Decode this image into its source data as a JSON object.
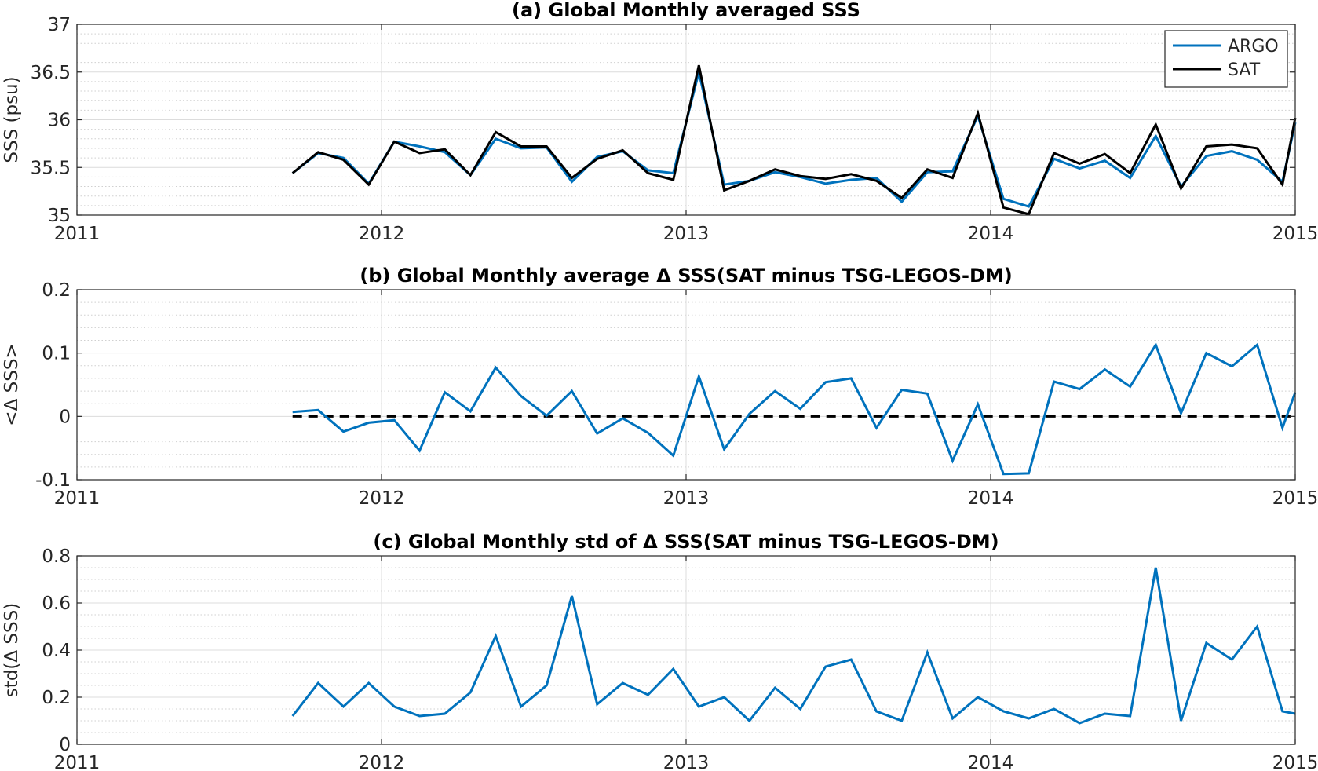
{
  "chart_data": [
    {
      "type": "line",
      "title": "(a) Global Monthly averaged SSS",
      "xlabel": "",
      "ylabel": "SSS (psu)",
      "xlim": [
        2011,
        2015
      ],
      "ylim": [
        35,
        37
      ],
      "xticks": [
        2011,
        2012,
        2013,
        2014,
        2015
      ],
      "xtick_labels": [
        "2011",
        "2012",
        "2013",
        "2014",
        "2015"
      ],
      "yticks": [
        35,
        35.5,
        36,
        36.5,
        37
      ],
      "ytick_labels": [
        "35",
        "35.5",
        "36",
        "36.5",
        "37"
      ],
      "minor_y_step": 0.1,
      "grid": true,
      "legend_position": "top-right",
      "x": [
        2011.708,
        2011.792,
        2011.875,
        2011.958,
        2012.042,
        2012.125,
        2012.208,
        2012.292,
        2012.375,
        2012.458,
        2012.542,
        2012.625,
        2012.708,
        2012.792,
        2012.875,
        2012.958,
        2013.042,
        2013.125,
        2013.208,
        2013.292,
        2013.375,
        2013.458,
        2013.542,
        2013.625,
        2013.708,
        2013.792,
        2013.875,
        2013.958,
        2014.042,
        2014.125,
        2014.208,
        2014.292,
        2014.375,
        2014.458,
        2014.542,
        2014.625,
        2014.708,
        2014.792,
        2014.875,
        2014.958,
        2015.0
      ],
      "series": [
        {
          "name": "ARGO",
          "color": "#0072BD",
          "values": [
            35.44,
            35.65,
            35.6,
            35.33,
            35.77,
            35.72,
            35.66,
            35.42,
            35.8,
            35.7,
            35.71,
            35.35,
            35.61,
            35.67,
            35.47,
            35.44,
            36.5,
            35.32,
            35.36,
            35.45,
            35.4,
            35.33,
            35.37,
            35.39,
            35.14,
            35.45,
            35.46,
            36.04,
            35.17,
            35.09,
            35.59,
            35.49,
            35.57,
            35.39,
            35.83,
            35.3,
            35.62,
            35.67,
            35.58,
            35.35,
            35.97
          ]
        },
        {
          "name": "SAT",
          "color": "#000000",
          "values": [
            35.44,
            35.66,
            35.58,
            35.32,
            35.77,
            35.65,
            35.69,
            35.42,
            35.87,
            35.72,
            35.72,
            35.39,
            35.59,
            35.68,
            35.44,
            35.37,
            36.57,
            35.26,
            35.36,
            35.48,
            35.41,
            35.38,
            35.43,
            35.36,
            35.18,
            35.48,
            35.39,
            36.07,
            35.08,
            35.01,
            35.65,
            35.54,
            35.64,
            35.44,
            35.95,
            35.28,
            35.72,
            35.74,
            35.7,
            35.32,
            36.02
          ]
        }
      ]
    },
    {
      "type": "line",
      "title": "(b) Global Monthly average Δ SSS(SAT minus TSG-LEGOS-DM)",
      "xlabel": "",
      "ylabel": "<Δ SSS>",
      "xlim": [
        2011,
        2015
      ],
      "ylim": [
        -0.1,
        0.2
      ],
      "xticks": [
        2011,
        2012,
        2013,
        2014,
        2015
      ],
      "xtick_labels": [
        "2011",
        "2012",
        "2013",
        "2014",
        "2015"
      ],
      "yticks": [
        -0.1,
        0,
        0.1,
        0.2
      ],
      "ytick_labels": [
        "-0.1",
        "0",
        "0.1",
        "0.2"
      ],
      "minor_y_step": 0.02,
      "grid": true,
      "reference_line": {
        "y": 0,
        "style": "dashed",
        "color": "#000000"
      },
      "x": [
        2011.708,
        2011.792,
        2011.875,
        2011.958,
        2012.042,
        2012.125,
        2012.208,
        2012.292,
        2012.375,
        2012.458,
        2012.542,
        2012.625,
        2012.708,
        2012.792,
        2012.875,
        2012.958,
        2013.042,
        2013.125,
        2013.208,
        2013.292,
        2013.375,
        2013.458,
        2013.542,
        2013.625,
        2013.708,
        2013.792,
        2013.875,
        2013.958,
        2014.042,
        2014.125,
        2014.208,
        2014.292,
        2014.375,
        2014.458,
        2014.542,
        2014.625,
        2014.708,
        2014.792,
        2014.875,
        2014.958,
        2015.0
      ],
      "series": [
        {
          "color": "#0072BD",
          "values": [
            0.007,
            0.01,
            -0.024,
            -0.01,
            -0.006,
            -0.054,
            0.038,
            0.008,
            0.077,
            0.032,
            0.001,
            0.04,
            -0.027,
            -0.003,
            -0.026,
            -0.062,
            0.063,
            -0.052,
            0.004,
            0.04,
            0.012,
            0.054,
            0.06,
            -0.018,
            0.042,
            0.036,
            -0.07,
            0.019,
            -0.091,
            -0.09,
            0.055,
            0.043,
            0.074,
            0.047,
            0.113,
            0.005,
            0.1,
            0.079,
            0.113,
            -0.018,
            0.038
          ]
        }
      ]
    },
    {
      "type": "line",
      "title": "(c) Global Monthly std of Δ SSS(SAT minus TSG-LEGOS-DM)",
      "xlabel": "",
      "ylabel": "std(Δ SSS)",
      "xlim": [
        2011,
        2015
      ],
      "ylim": [
        0,
        0.8
      ],
      "xticks": [
        2011,
        2012,
        2013,
        2014,
        2015
      ],
      "xtick_labels": [
        "2011",
        "2012",
        "2013",
        "2014",
        "2015"
      ],
      "yticks": [
        0,
        0.2,
        0.4,
        0.6,
        0.8
      ],
      "ytick_labels": [
        "0",
        "0.2",
        "0.4",
        "0.6",
        "0.8"
      ],
      "minor_y_step": 0.05,
      "grid": true,
      "x": [
        2011.708,
        2011.792,
        2011.875,
        2011.958,
        2012.042,
        2012.125,
        2012.208,
        2012.292,
        2012.375,
        2012.458,
        2012.542,
        2012.625,
        2012.708,
        2012.792,
        2012.875,
        2012.958,
        2013.042,
        2013.125,
        2013.208,
        2013.292,
        2013.375,
        2013.458,
        2013.542,
        2013.625,
        2013.708,
        2013.792,
        2013.875,
        2013.958,
        2014.042,
        2014.125,
        2014.208,
        2014.292,
        2014.375,
        2014.458,
        2014.542,
        2014.625,
        2014.708,
        2014.792,
        2014.875,
        2014.958,
        2015.0
      ],
      "series": [
        {
          "color": "#0072BD",
          "values": [
            0.12,
            0.26,
            0.16,
            0.26,
            0.16,
            0.12,
            0.13,
            0.22,
            0.46,
            0.16,
            0.25,
            0.63,
            0.17,
            0.26,
            0.21,
            0.32,
            0.16,
            0.2,
            0.1,
            0.24,
            0.15,
            0.33,
            0.36,
            0.14,
            0.1,
            0.39,
            0.11,
            0.2,
            0.14,
            0.11,
            0.15,
            0.09,
            0.13,
            0.12,
            0.75,
            0.1,
            0.43,
            0.36,
            0.5,
            0.14,
            0.13
          ]
        }
      ]
    }
  ]
}
